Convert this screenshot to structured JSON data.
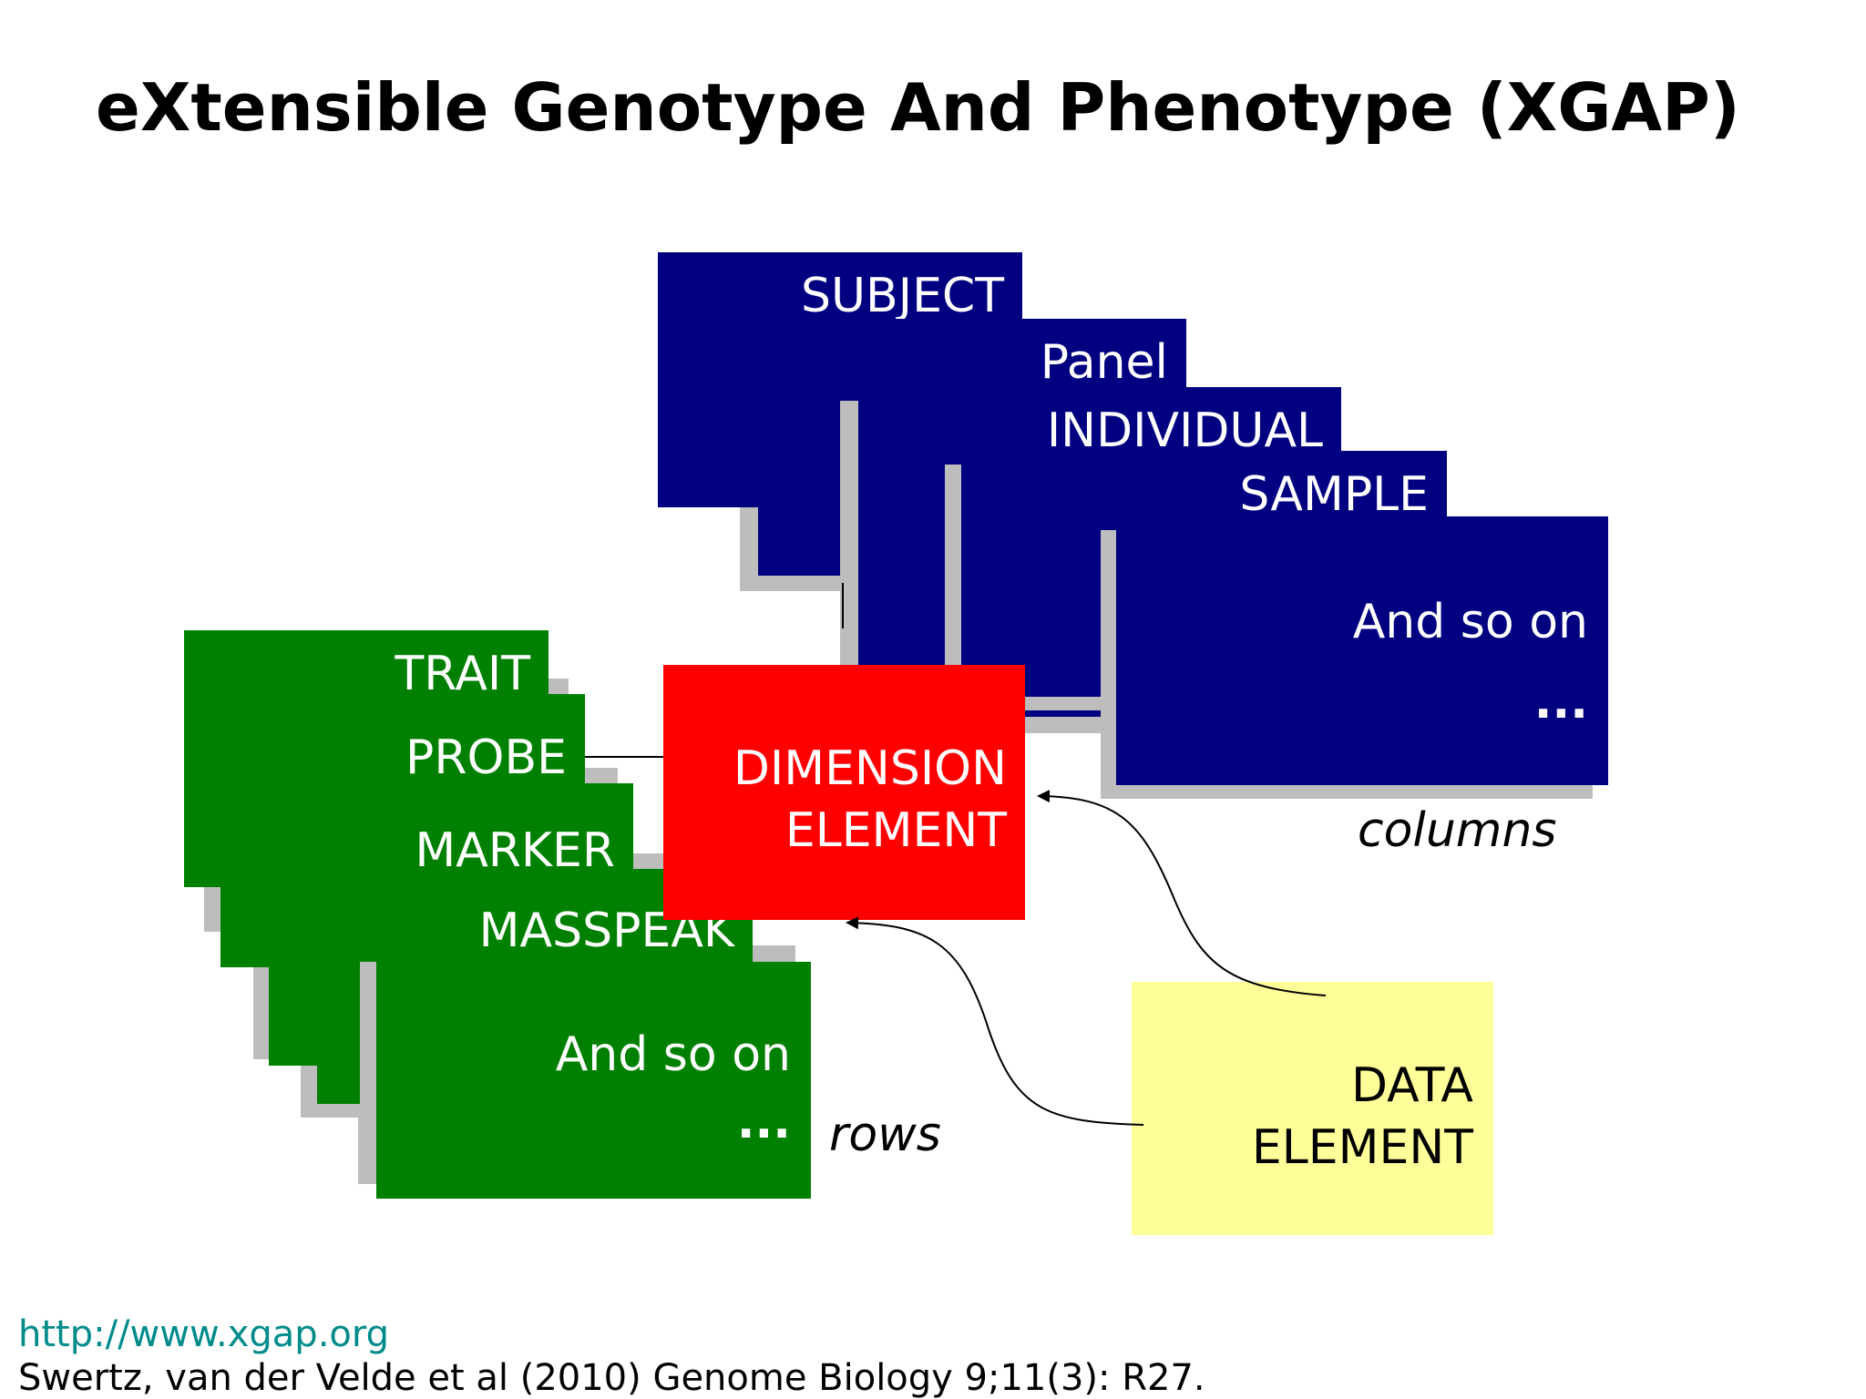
{
  "title": "eXtensible Genotype And Phenotype (XGAP)",
  "column_boxes": [
    {
      "label": "SUBJECT"
    },
    {
      "label": "Panel"
    },
    {
      "label": "INDIVIDUAL"
    },
    {
      "label": "SAMPLE"
    },
    {
      "label": "And so on",
      "sub": "..."
    }
  ],
  "row_boxes": [
    {
      "label": "TRAIT"
    },
    {
      "label": "PROBE"
    },
    {
      "label": "MARKER"
    },
    {
      "label": "MASSPEAK"
    },
    {
      "label": "And so on",
      "sub": "..."
    }
  ],
  "dimension_element": "DIMENSION\nELEMENT",
  "data_element": "DATA\nELEMENT",
  "columns_label": "columns",
  "rows_label": "rows",
  "footer": {
    "link": "http://www.xgap.org",
    "citation": "Swertz, van der Velde et al (2010) Genome Biology 9;11(3): R27."
  },
  "colors": {
    "column_box": "#000080",
    "row_box": "#008000",
    "dimension_box": "#ff0000",
    "data_box": "#ffff99",
    "shadow": "#bdbdbd"
  }
}
